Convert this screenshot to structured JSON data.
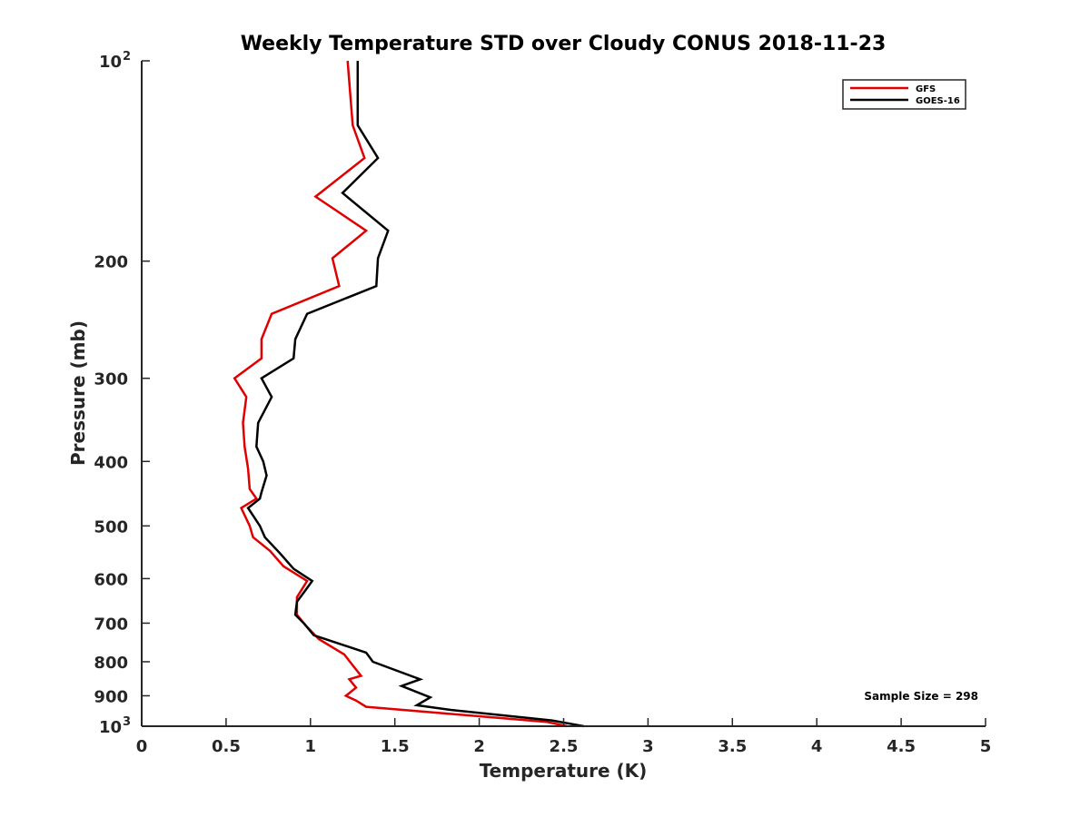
{
  "chart_data": {
    "type": "line",
    "title": "Weekly Temperature STD over Cloudy CONUS 2018-11-23",
    "xlabel": "Temperature (K)",
    "ylabel": "Pressure (mb)",
    "xlim": [
      0,
      5
    ],
    "ylim": [
      100,
      1000
    ],
    "y_scale": "log",
    "y_reversed": true,
    "x_ticks": [
      "0",
      "0.5",
      "1",
      "1.5",
      "2",
      "2.5",
      "3",
      "3.5",
      "4",
      "4.5",
      "5"
    ],
    "y_ticks": [
      {
        "value": 100,
        "label": "10",
        "sup": "2"
      },
      {
        "value": 200,
        "label": "200"
      },
      {
        "value": 300,
        "label": "300"
      },
      {
        "value": 400,
        "label": "400"
      },
      {
        "value": 500,
        "label": "500"
      },
      {
        "value": 600,
        "label": "600"
      },
      {
        "value": 700,
        "label": "700"
      },
      {
        "value": 800,
        "label": "800"
      },
      {
        "value": 900,
        "label": "900"
      },
      {
        "value": 1000,
        "label": "10",
        "sup": "3"
      }
    ],
    "grid": false,
    "legend_position": "top-right",
    "annotation": "Sample Size = 298",
    "series": [
      {
        "name": "GFS",
        "color": "#e00000",
        "points": [
          [
            1.22,
            100
          ],
          [
            1.25,
            125
          ],
          [
            1.32,
            140
          ],
          [
            1.03,
            160
          ],
          [
            1.33,
            180
          ],
          [
            1.13,
            198
          ],
          [
            1.17,
            218
          ],
          [
            0.77,
            240
          ],
          [
            0.71,
            262
          ],
          [
            0.71,
            280
          ],
          [
            0.55,
            300
          ],
          [
            0.62,
            320
          ],
          [
            0.6,
            350
          ],
          [
            0.61,
            380
          ],
          [
            0.63,
            410
          ],
          [
            0.64,
            440
          ],
          [
            0.68,
            455
          ],
          [
            0.59,
            470
          ],
          [
            0.64,
            500
          ],
          [
            0.66,
            520
          ],
          [
            0.76,
            545
          ],
          [
            0.84,
            575
          ],
          [
            0.98,
            605
          ],
          [
            0.92,
            640
          ],
          [
            0.92,
            680
          ],
          [
            0.97,
            705
          ],
          [
            1.05,
            740
          ],
          [
            1.2,
            780
          ],
          [
            1.25,
            810
          ],
          [
            1.3,
            840
          ],
          [
            1.23,
            850
          ],
          [
            1.27,
            875
          ],
          [
            1.21,
            900
          ],
          [
            1.27,
            915
          ],
          [
            1.33,
            935
          ],
          [
            2.4,
            985
          ],
          [
            2.52,
            1000
          ]
        ]
      },
      {
        "name": "GOES-16",
        "color": "#000000",
        "points": [
          [
            1.28,
            100
          ],
          [
            1.28,
            125
          ],
          [
            1.4,
            140
          ],
          [
            1.19,
            158
          ],
          [
            1.46,
            180
          ],
          [
            1.4,
            198
          ],
          [
            1.39,
            218
          ],
          [
            0.98,
            240
          ],
          [
            0.91,
            262
          ],
          [
            0.9,
            280
          ],
          [
            0.71,
            300
          ],
          [
            0.77,
            320
          ],
          [
            0.69,
            350
          ],
          [
            0.68,
            380
          ],
          [
            0.72,
            400
          ],
          [
            0.74,
            420
          ],
          [
            0.71,
            445
          ],
          [
            0.7,
            455
          ],
          [
            0.63,
            470
          ],
          [
            0.7,
            500
          ],
          [
            0.73,
            520
          ],
          [
            0.82,
            550
          ],
          [
            0.9,
            580
          ],
          [
            1.01,
            605
          ],
          [
            0.97,
            625
          ],
          [
            0.92,
            650
          ],
          [
            0.91,
            680
          ],
          [
            0.96,
            700
          ],
          [
            1.02,
            730
          ],
          [
            1.33,
            775
          ],
          [
            1.37,
            800
          ],
          [
            1.65,
            850
          ],
          [
            1.54,
            870
          ],
          [
            1.71,
            905
          ],
          [
            1.63,
            930
          ],
          [
            1.83,
            945
          ],
          [
            2.43,
            980
          ],
          [
            2.62,
            1000
          ]
        ]
      }
    ]
  }
}
